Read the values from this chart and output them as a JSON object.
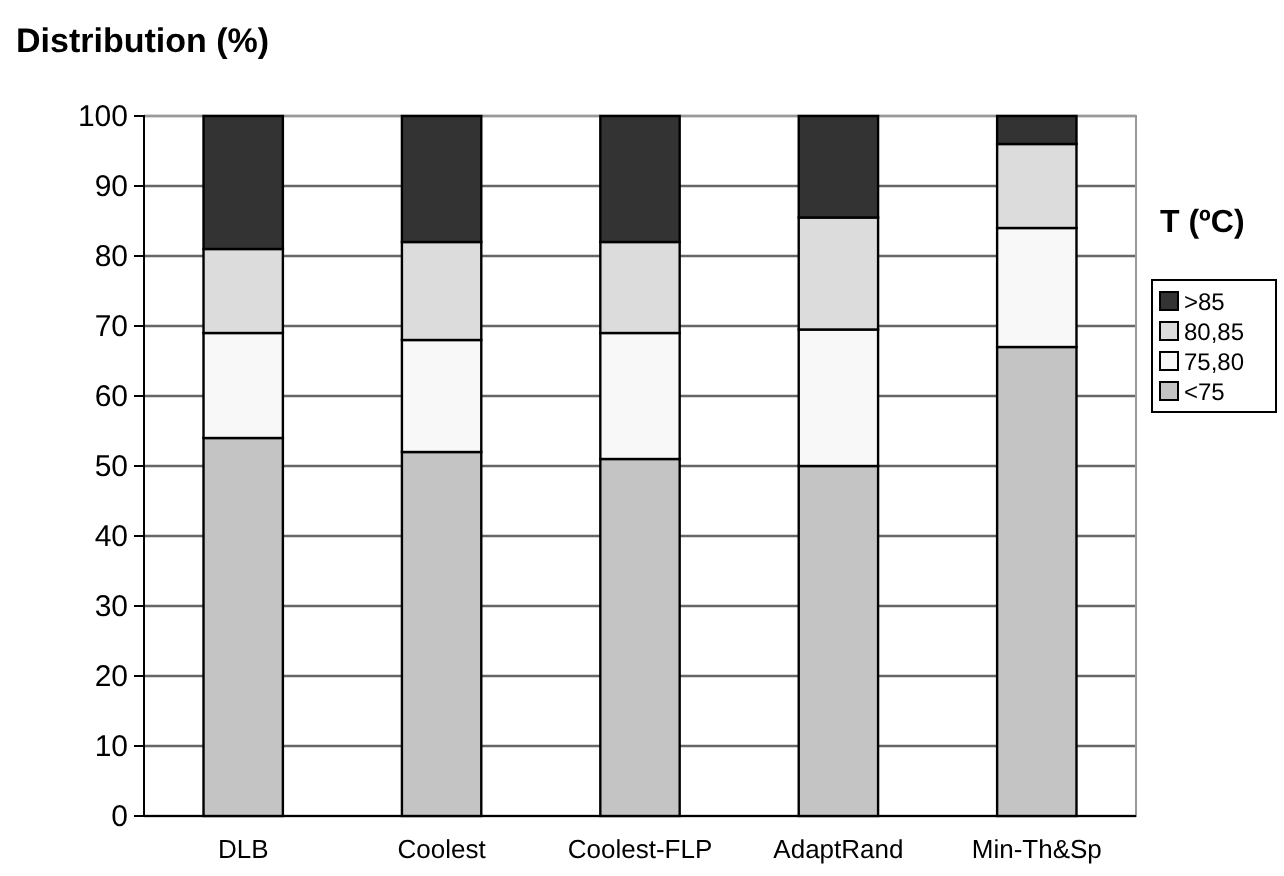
{
  "chart_data": {
    "type": "bar",
    "title": "Distribution (%)",
    "legend_title": "T (ºC)",
    "stacked": true,
    "grid": "y",
    "legend": "right",
    "categories": [
      "DLB",
      "Coolest",
      "Coolest-FLP",
      "AdaptRand",
      "Min-Th&Sp"
    ],
    "ylim": [
      0,
      100
    ],
    "yticks": [
      0,
      10,
      20,
      30,
      40,
      50,
      60,
      70,
      80,
      90,
      100
    ],
    "series": [
      {
        "name": "<75",
        "color": "#c4c4c4",
        "values": [
          54,
          52,
          51,
          50,
          67
        ]
      },
      {
        "name": "75,80",
        "color": "#f8f8f8",
        "values": [
          15,
          16,
          18,
          19.5,
          17
        ]
      },
      {
        "name": "80,85",
        "color": "#dcdcdc",
        "values": [
          12,
          14,
          13,
          16,
          12
        ]
      },
      {
        "name": ">85",
        "color": "#333333",
        "values": [
          19,
          18,
          18,
          14.5,
          4
        ]
      }
    ]
  }
}
